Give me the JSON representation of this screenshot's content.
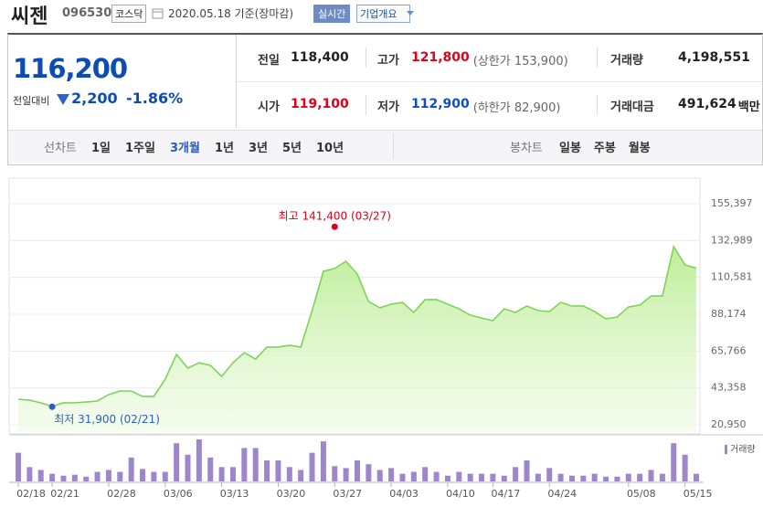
{
  "header": {
    "name": "씨젠",
    "code": "096530",
    "market": "코스닥",
    "date": "2020.05.18",
    "basis": "기준(장마감)",
    "realtime": "실시간",
    "company_info": "기업개요"
  },
  "quote": {
    "price": "116,200",
    "change_label": "전일대비",
    "change": "2,200",
    "change_rate": "-1.86%",
    "stats": [
      {
        "label": "전일",
        "value": "118,400",
        "color": "#222222"
      },
      {
        "label": "고가",
        "value": "121,800",
        "color": "#e0001a",
        "limit": "(상한가 153,900)"
      },
      {
        "label": "거래량",
        "value": "4,198,551",
        "color": "#222222"
      },
      {
        "label": "시가",
        "value": "119,100",
        "color": "#e0001a"
      },
      {
        "label": "저가",
        "value": "112,900",
        "color": "#0f4fc4",
        "limit": "(하한가 82,900)"
      },
      {
        "label": "거래대금",
        "value": "491,624",
        "color": "#222222",
        "unit": "백만"
      }
    ]
  },
  "tabs": {
    "line_label": "선차트",
    "line": [
      "1일",
      "1주일",
      "3개월",
      "1년",
      "3년",
      "5년",
      "10년"
    ],
    "selected": "3개월",
    "candle_label": "봉차트",
    "candle": [
      "일봉",
      "주봉",
      "월봉"
    ]
  },
  "chart_data": {
    "type": "area",
    "color": "#7fd35a",
    "categories": [
      "02/18",
      null,
      null,
      "02/21",
      null,
      null,
      null,
      null,
      "02/28",
      null,
      null,
      null,
      null,
      "03/06",
      null,
      null,
      null,
      null,
      "03/13",
      null,
      null,
      null,
      null,
      "03/20",
      null,
      null,
      null,
      null,
      "03/27",
      null,
      null,
      null,
      null,
      "04/03",
      null,
      null,
      null,
      null,
      "04/10",
      null,
      null,
      null,
      "04/17",
      null,
      null,
      null,
      null,
      "04/24",
      null,
      null,
      null,
      null,
      null,
      null,
      "05/08",
      null,
      null,
      null,
      null,
      "05/15",
      null
    ],
    "values": [
      36500,
      35900,
      34300,
      32100,
      34300,
      34300,
      34800,
      35400,
      39300,
      41500,
      41500,
      38200,
      38200,
      48700,
      63700,
      55400,
      58700,
      57100,
      50400,
      58700,
      64800,
      60900,
      68200,
      68200,
      69300,
      68200,
      90400,
      114300,
      116000,
      120400,
      112600,
      95900,
      92100,
      94300,
      95400,
      89300,
      97100,
      97100,
      94300,
      91500,
      87600,
      85900,
      84300,
      91500,
      89300,
      93200,
      90400,
      89800,
      95400,
      93200,
      93200,
      89800,
      85400,
      86500,
      92600,
      93700,
      99300,
      99300,
      129300,
      118200,
      116200
    ],
    "volume": {
      "name": "거래량",
      "color": "#9d86cc",
      "values": [
        15750000,
        7875000,
        6300000,
        4200000,
        3150000,
        3675000,
        2625000,
        5250000,
        6300000,
        5250000,
        13125000,
        6825000,
        5250000,
        5250000,
        21000000,
        14700000,
        23100000,
        13125000,
        7875000,
        7875000,
        18375000,
        18375000,
        11550000,
        11550000,
        7875000,
        6300000,
        15750000,
        22050000,
        8400000,
        7350000,
        11550000,
        9450000,
        6300000,
        7350000,
        4200000,
        5250000,
        7875000,
        5250000,
        3150000,
        5250000,
        4200000,
        4200000,
        4200000,
        3150000,
        7875000,
        11550000,
        4200000,
        7350000,
        4200000,
        3150000,
        3150000,
        4200000,
        2625000,
        2625000,
        4200000,
        4200000,
        6300000,
        4200000,
        21000000,
        14700000,
        4198551
      ]
    },
    "ylim": [
      20950,
      155397
    ],
    "yticks": [
      {
        "value": 20950,
        "label": "20,950"
      },
      {
        "value": 43358,
        "label": "43,358"
      },
      {
        "value": 65766,
        "label": "65,766"
      },
      {
        "value": 88174,
        "label": "88,174"
      },
      {
        "value": 110581,
        "label": "110,581"
      },
      {
        "value": 132989,
        "label": "132,989"
      },
      {
        "value": 155397,
        "label": "155,397"
      }
    ],
    "grid": true,
    "high": {
      "text": "최고 141,400 (03/27)",
      "value": 141400,
      "date": "03/27",
      "color": "#e0001a"
    },
    "low": {
      "text": "최저 31,900 (02/21)",
      "value": 31900,
      "date": "02/21",
      "color": "#2c5fb8"
    }
  }
}
